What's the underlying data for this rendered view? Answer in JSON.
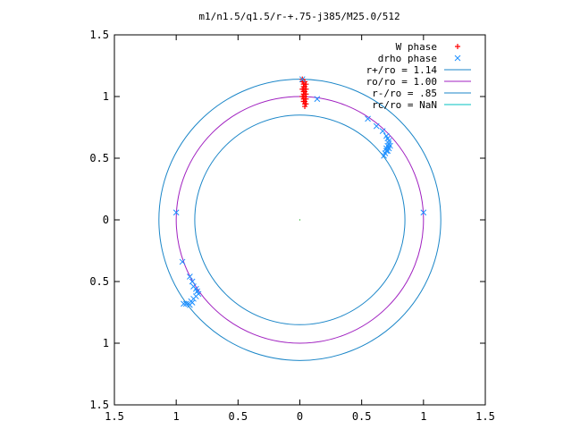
{
  "chart_data": {
    "type": "scatter",
    "title": "m1/n1.5/q1.5/r-+.75-j385/M25.0/512",
    "xlabel": "",
    "ylabel": "",
    "xlim": [
      -1.5,
      1.5
    ],
    "ylim": [
      -1.5,
      1.5
    ],
    "xticks": [
      -1.5,
      -1,
      -0.5,
      0,
      0.5,
      1,
      1.5
    ],
    "yticks": [
      -1.5,
      -1,
      -0.5,
      0,
      0.5,
      1,
      1.5
    ],
    "xtick_labels": [
      "1.5",
      "1",
      "0.5",
      "0",
      "0.5",
      "1",
      "1.5"
    ],
    "ytick_labels": [
      "1.5",
      "1",
      "0.5",
      "0",
      "0.5",
      "1",
      "1.5"
    ],
    "grid": false,
    "legend_position": "top-right",
    "legend": [
      "W phase",
      "drho phase",
      "r+/ro = 1.14",
      "ro/ro = 1.00",
      "r-/ro = .85",
      "rc/ro = NaN"
    ],
    "series": [
      {
        "name": "W phase",
        "kind": "points",
        "marker": "+",
        "color": "#ff0000",
        "points": [
          [
            0.02,
            1.14
          ],
          [
            0.02,
            1.12
          ],
          [
            0.03,
            1.1
          ],
          [
            0.03,
            1.08
          ],
          [
            0.02,
            1.06
          ],
          [
            0.03,
            1.04
          ],
          [
            0.03,
            1.02
          ],
          [
            0.02,
            1.0
          ],
          [
            0.03,
            0.98
          ],
          [
            0.03,
            0.96
          ],
          [
            0.04,
            0.94
          ],
          [
            0.04,
            0.92
          ],
          [
            0.05,
            1.1
          ],
          [
            0.05,
            1.06
          ],
          [
            0.05,
            1.02
          ],
          [
            0.05,
            0.98
          ],
          [
            0.05,
            0.94
          ],
          [
            0.04,
            1.12
          ],
          [
            0.04,
            1.08
          ],
          [
            0.04,
            1.04
          ],
          [
            0.04,
            1.0
          ],
          [
            0.04,
            0.96
          ]
        ]
      },
      {
        "name": "drho phase",
        "kind": "points",
        "marker": "x",
        "color": "#1e90ff",
        "points": [
          [
            0.02,
            1.14
          ],
          [
            0.14,
            0.98
          ],
          [
            0.55,
            0.82
          ],
          [
            0.62,
            0.76
          ],
          [
            0.67,
            0.72
          ],
          [
            0.7,
            0.68
          ],
          [
            0.71,
            0.66
          ],
          [
            0.72,
            0.64
          ],
          [
            0.72,
            0.62
          ],
          [
            0.71,
            0.6
          ],
          [
            0.7,
            0.58
          ],
          [
            0.7,
            0.56
          ],
          [
            0.69,
            0.54
          ],
          [
            0.71,
            0.56
          ],
          [
            0.72,
            0.58
          ],
          [
            0.73,
            0.6
          ],
          [
            0.68,
            0.52
          ],
          [
            1.0,
            0.06
          ],
          [
            -1.0,
            0.06
          ],
          [
            -0.95,
            -0.34
          ],
          [
            -0.89,
            -0.46
          ],
          [
            -0.87,
            -0.5
          ],
          [
            -0.86,
            -0.54
          ],
          [
            -0.84,
            -0.56
          ],
          [
            -0.83,
            -0.58
          ],
          [
            -0.82,
            -0.6
          ],
          [
            -0.84,
            -0.62
          ],
          [
            -0.86,
            -0.64
          ],
          [
            -0.88,
            -0.66
          ],
          [
            -0.9,
            -0.68
          ],
          [
            -0.92,
            -0.68
          ],
          [
            -0.94,
            -0.68
          ],
          [
            -0.87,
            -0.67
          ],
          [
            -0.89,
            -0.69
          ]
        ]
      },
      {
        "name": "r+/ro = 1.14",
        "kind": "circle",
        "radius": 1.14,
        "color": "#1b86c8"
      },
      {
        "name": "ro/ro = 1.00",
        "kind": "circle",
        "radius": 1.0,
        "color": "#a020c0"
      },
      {
        "name": "r-/ro = .85",
        "kind": "circle",
        "radius": 0.85,
        "color": "#1b86c8"
      },
      {
        "name": "rc/ro = NaN",
        "kind": "circle",
        "radius": null,
        "color": "#00c0c0"
      }
    ]
  }
}
